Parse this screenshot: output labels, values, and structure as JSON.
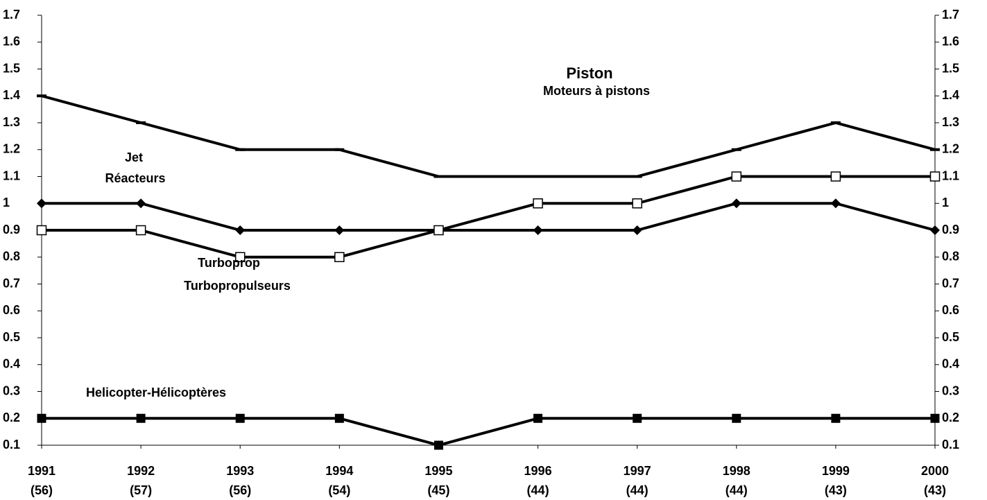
{
  "chart_data": {
    "type": "line",
    "categories": [
      "1991",
      "1992",
      "1993",
      "1994",
      "1995",
      "1996",
      "1997",
      "1998",
      "1999",
      "2000"
    ],
    "category_counts": [
      "(56)",
      "(57)",
      "(56)",
      "(54)",
      "(45)",
      "(44)",
      "(44)",
      "(44)",
      "(43)",
      "(43)"
    ],
    "series": [
      {
        "name": "Piston",
        "subname": "Moteurs à pistons",
        "color": "#000000",
        "marker": "dash",
        "values": [
          1.4,
          1.3,
          1.2,
          1.2,
          1.1,
          1.1,
          1.1,
          1.2,
          1.3,
          1.2
        ]
      },
      {
        "name": "Jet",
        "subname": "Réacteurs",
        "color": "#000000",
        "marker": "diamond",
        "values": [
          1.0,
          1.0,
          0.9,
          0.9,
          0.9,
          0.9,
          0.9,
          1.0,
          1.0,
          0.9
        ]
      },
      {
        "name": "Turboprop",
        "subname": "Turbopropulseurs",
        "color": "#000000",
        "marker": "open-square",
        "values": [
          0.9,
          0.9,
          0.8,
          0.8,
          0.9,
          1.0,
          1.0,
          1.1,
          1.1,
          1.1
        ]
      },
      {
        "name": "Helicopter-Hélicoptères",
        "color": "#000000",
        "marker": "square",
        "values": [
          0.2,
          0.2,
          0.2,
          0.2,
          0.1,
          0.2,
          0.2,
          0.2,
          0.2,
          0.2
        ]
      }
    ],
    "ylim": [
      0.1,
      1.7
    ],
    "yticks": [
      0.1,
      0.2,
      0.3,
      0.4,
      0.5,
      0.6,
      0.7,
      0.8,
      0.9,
      1,
      1.1,
      1.2,
      1.3,
      1.4,
      1.5,
      1.6,
      1.7
    ],
    "right_axis_mirror": true
  }
}
